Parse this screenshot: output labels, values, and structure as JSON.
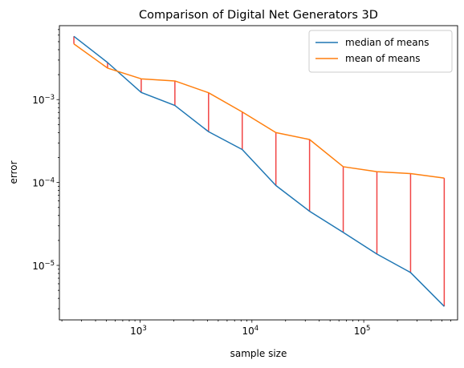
{
  "chart_data": {
    "type": "line",
    "title": "Comparison of Digital Net Generators 3D",
    "xlabel": "sample size",
    "ylabel": "error",
    "xscale": "log",
    "yscale": "log",
    "xlim": [
      190,
      690000
    ],
    "ylim": [
      2.2e-06,
      0.0078
    ],
    "grid": false,
    "legend_position": "top-right",
    "x": [
      256,
      512,
      1024,
      2048,
      4096,
      8192,
      16384,
      32768,
      65536,
      131072,
      262144,
      524288
    ],
    "series": [
      {
        "name": "median of means",
        "color": "#1f77b4",
        "values": [
          0.0058,
          0.0028,
          0.00122,
          0.00085,
          0.00041,
          0.00025,
          9.2e-05,
          4.5e-05,
          2.5e-05,
          1.37e-05,
          8.2e-06,
          3.2e-06
        ]
      },
      {
        "name": "mean of means",
        "color": "#ff7f0e",
        "values": [
          0.0047,
          0.0024,
          0.00178,
          0.00168,
          0.00121,
          0.00071,
          0.0004,
          0.00033,
          0.000155,
          0.000135,
          0.000128,
          0.000113
        ]
      }
    ],
    "connector_color": "#f14545",
    "x_ticks": [
      {
        "value": 1000,
        "base": "10",
        "exp": "3"
      },
      {
        "value": 10000,
        "base": "10",
        "exp": "4"
      },
      {
        "value": 100000,
        "base": "10",
        "exp": "5"
      }
    ],
    "y_ticks": [
      {
        "value": 1e-05,
        "base": "10",
        "exp": "−5"
      },
      {
        "value": 0.0001,
        "base": "10",
        "exp": "−4"
      },
      {
        "value": 0.001,
        "base": "10",
        "exp": "−3"
      }
    ]
  }
}
